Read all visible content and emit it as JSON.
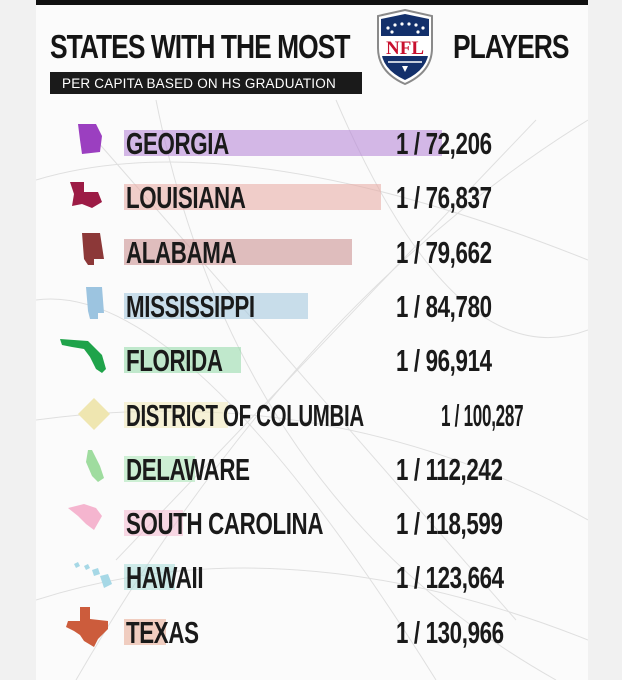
{
  "header": {
    "title_left": "STATES WITH THE MOST",
    "title_right": "PLAYERS",
    "logo_text": "NFL",
    "subtitle": "PER CAPITA BASED ON HS GRADUATION"
  },
  "chart_data": {
    "type": "bar",
    "title": "STATES WITH THE MOST NFL PLAYERS",
    "subtitle": "PER CAPITA BASED ON HS GRADUATION",
    "xlabel": "",
    "ylabel": "",
    "categories": [
      "GEORGIA",
      "LOUISIANA",
      "ALABAMA",
      "MISSISSIPPI",
      "FLORIDA",
      "DISTRICT OF COLUMBIA",
      "DELAWARE",
      "SOUTH CAROLINA",
      "HAWAII",
      "TEXAS"
    ],
    "values": [
      72206,
      76837,
      79662,
      84780,
      96914,
      100287,
      112242,
      118599,
      123664,
      130966
    ],
    "value_labels": [
      "1 / 72,206",
      "1 / 76,837",
      "1 / 79,662",
      "1 / 84,780",
      "1 / 96,914",
      "1 / 100,287",
      "1 / 112,242",
      "1 / 118,599",
      "1 / 123,664",
      "1 / 130,966"
    ],
    "colors": [
      "#b27fd6",
      "#e8a8a0",
      "#c88a8a",
      "#9ec4dc",
      "#8fd8a6",
      "#f2eab8",
      "#a8e6b4",
      "#f4b8d0",
      "#a8dcd8",
      "#e8a890"
    ],
    "icon_colors": [
      "#9b3fc0",
      "#9c1b45",
      "#8c3838",
      "#9cc4e0",
      "#1fa34a",
      "#efe6b0",
      "#9fdc9f",
      "#f5b5cf",
      "#a6d8e6",
      "#cc5c3c"
    ]
  }
}
